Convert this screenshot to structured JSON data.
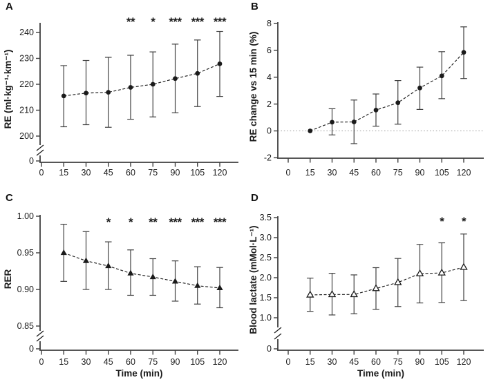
{
  "figure": {
    "background": "#ffffff",
    "style": {
      "ink": "#1b1b1b",
      "axis": "#3e3e3e",
      "error_bar": "#3e3e3e",
      "zero_line": "#999999",
      "open_marker_fill": "#ffffff"
    }
  },
  "chart_data": [
    {
      "panel_label": "A",
      "type": "line",
      "marker": "filled-circle",
      "ylabel": "RE (ml·kg⁻¹·km⁻¹)",
      "xlabel": "",
      "x_tick_values": [
        0,
        15,
        30,
        45,
        60,
        75,
        90,
        105,
        120
      ],
      "x_tick_labels": [
        "0",
        "15",
        "30",
        "45",
        "60",
        "75",
        "90",
        "105",
        "120"
      ],
      "y_ticks": [
        {
          "v": 240,
          "label": "240"
        },
        {
          "v": 230,
          "label": "230"
        },
        {
          "v": 220,
          "label": "220"
        },
        {
          "v": 210,
          "label": "210"
        },
        {
          "v": 200,
          "label": "200"
        }
      ],
      "ylim_linear": [
        200,
        240
      ],
      "axis_break": true,
      "break_zero_label": "0",
      "zero_line_dotted": false,
      "points": [
        {
          "x": 15,
          "y": 215.5,
          "lo": 203.6,
          "hi": 227.2,
          "sig": ""
        },
        {
          "x": 30,
          "y": 216.6,
          "lo": 204.4,
          "hi": 229.2,
          "sig": ""
        },
        {
          "x": 45,
          "y": 216.9,
          "lo": 203.4,
          "hi": 230.4,
          "sig": ""
        },
        {
          "x": 60,
          "y": 218.8,
          "lo": 206.5,
          "hi": 231.2,
          "sig": "**"
        },
        {
          "x": 75,
          "y": 220.0,
          "lo": 207.4,
          "hi": 232.5,
          "sig": "*"
        },
        {
          "x": 90,
          "y": 222.2,
          "lo": 209.0,
          "hi": 235.5,
          "sig": "***"
        },
        {
          "x": 105,
          "y": 224.2,
          "lo": 211.4,
          "hi": 237.1,
          "sig": "***"
        },
        {
          "x": 120,
          "y": 227.9,
          "lo": 215.3,
          "hi": 240.4,
          "sig": "***"
        }
      ]
    },
    {
      "panel_label": "B",
      "type": "line",
      "marker": "filled-circle",
      "ylabel": "RE change vs 15 min (%)",
      "xlabel": "",
      "x_tick_values": [
        0,
        15,
        30,
        45,
        60,
        75,
        90,
        105,
        120
      ],
      "x_tick_labels": [
        "0",
        "15",
        "30",
        "45",
        "60",
        "75",
        "90",
        "105",
        "120"
      ],
      "y_ticks": [
        {
          "v": 8,
          "label": "8"
        },
        {
          "v": 6,
          "label": "6"
        },
        {
          "v": 4,
          "label": "4"
        },
        {
          "v": 2,
          "label": "2"
        },
        {
          "v": 0,
          "label": "0"
        },
        {
          "v": -2,
          "label": "-2"
        }
      ],
      "ylim_linear": [
        -2,
        8
      ],
      "axis_break": false,
      "break_zero_label": "",
      "zero_line_dotted": true,
      "points": [
        {
          "x": 15,
          "y": 0.0,
          "lo": null,
          "hi": null,
          "sig": ""
        },
        {
          "x": 30,
          "y": 0.65,
          "lo": -0.3,
          "hi": 1.65,
          "sig": ""
        },
        {
          "x": 45,
          "y": 0.67,
          "lo": -0.95,
          "hi": 2.3,
          "sig": ""
        },
        {
          "x": 60,
          "y": 1.55,
          "lo": 0.35,
          "hi": 2.75,
          "sig": ""
        },
        {
          "x": 75,
          "y": 2.1,
          "lo": 0.5,
          "hi": 3.75,
          "sig": ""
        },
        {
          "x": 90,
          "y": 3.2,
          "lo": 1.6,
          "hi": 4.75,
          "sig": ""
        },
        {
          "x": 105,
          "y": 4.1,
          "lo": 2.4,
          "hi": 5.9,
          "sig": ""
        },
        {
          "x": 120,
          "y": 5.85,
          "lo": 3.9,
          "hi": 7.75,
          "sig": ""
        }
      ]
    },
    {
      "panel_label": "C",
      "type": "line",
      "marker": "filled-triangle",
      "ylabel": "RER",
      "xlabel": "Time (min)",
      "x_tick_values": [
        0,
        15,
        30,
        45,
        60,
        75,
        90,
        105,
        120
      ],
      "x_tick_labels": [
        "0",
        "15",
        "30",
        "45",
        "60",
        "75",
        "90",
        "105",
        "120"
      ],
      "y_ticks": [
        {
          "v": 1.0,
          "label": "1.00"
        },
        {
          "v": 0.95,
          "label": "0.95"
        },
        {
          "v": 0.9,
          "label": "0.90"
        },
        {
          "v": 0.85,
          "label": "0.85"
        }
      ],
      "ylim_linear": [
        0.85,
        1.0
      ],
      "axis_break": true,
      "break_zero_label": "0",
      "zero_line_dotted": false,
      "points": [
        {
          "x": 15,
          "y": 0.95,
          "lo": 0.911,
          "hi": 0.989,
          "sig": ""
        },
        {
          "x": 30,
          "y": 0.939,
          "lo": 0.9,
          "hi": 0.979,
          "sig": ""
        },
        {
          "x": 45,
          "y": 0.932,
          "lo": 0.9,
          "hi": 0.965,
          "sig": "*"
        },
        {
          "x": 60,
          "y": 0.922,
          "lo": 0.892,
          "hi": 0.954,
          "sig": "*"
        },
        {
          "x": 75,
          "y": 0.917,
          "lo": 0.892,
          "hi": 0.942,
          "sig": "**"
        },
        {
          "x": 90,
          "y": 0.911,
          "lo": 0.884,
          "hi": 0.939,
          "sig": "***"
        },
        {
          "x": 105,
          "y": 0.905,
          "lo": 0.88,
          "hi": 0.931,
          "sig": "***"
        },
        {
          "x": 120,
          "y": 0.902,
          "lo": 0.875,
          "hi": 0.93,
          "sig": "***"
        }
      ]
    },
    {
      "panel_label": "D",
      "type": "line",
      "marker": "open-triangle",
      "ylabel": "Blood lactate (mMol·L⁻¹)",
      "xlabel": "Time (min)",
      "x_tick_values": [
        0,
        15,
        30,
        45,
        60,
        75,
        90,
        105,
        120
      ],
      "x_tick_labels": [
        "0",
        "15",
        "30",
        "45",
        "60",
        "75",
        "90",
        "105",
        "120"
      ],
      "y_ticks": [
        {
          "v": 3.5,
          "label": "3.5"
        },
        {
          "v": 3.0,
          "label": "3.0"
        },
        {
          "v": 2.5,
          "label": "2.5"
        },
        {
          "v": 2.0,
          "label": "2.0"
        },
        {
          "v": 1.5,
          "label": "1.5"
        },
        {
          "v": 1.0,
          "label": "1.0"
        }
      ],
      "ylim_linear": [
        1.0,
        3.5
      ],
      "axis_break": true,
      "break_zero_label": "0",
      "zero_line_dotted": false,
      "points": [
        {
          "x": 15,
          "y": 1.57,
          "lo": 1.16,
          "hi": 1.99,
          "sig": ""
        },
        {
          "x": 30,
          "y": 1.58,
          "lo": 1.07,
          "hi": 2.11,
          "sig": ""
        },
        {
          "x": 45,
          "y": 1.58,
          "lo": 1.1,
          "hi": 2.07,
          "sig": ""
        },
        {
          "x": 60,
          "y": 1.73,
          "lo": 1.21,
          "hi": 2.25,
          "sig": ""
        },
        {
          "x": 75,
          "y": 1.88,
          "lo": 1.28,
          "hi": 2.48,
          "sig": ""
        },
        {
          "x": 90,
          "y": 2.1,
          "lo": 1.37,
          "hi": 2.83,
          "sig": ""
        },
        {
          "x": 105,
          "y": 2.12,
          "lo": 1.38,
          "hi": 2.87,
          "sig": "*"
        },
        {
          "x": 120,
          "y": 2.26,
          "lo": 1.43,
          "hi": 3.09,
          "sig": "*"
        }
      ]
    }
  ]
}
